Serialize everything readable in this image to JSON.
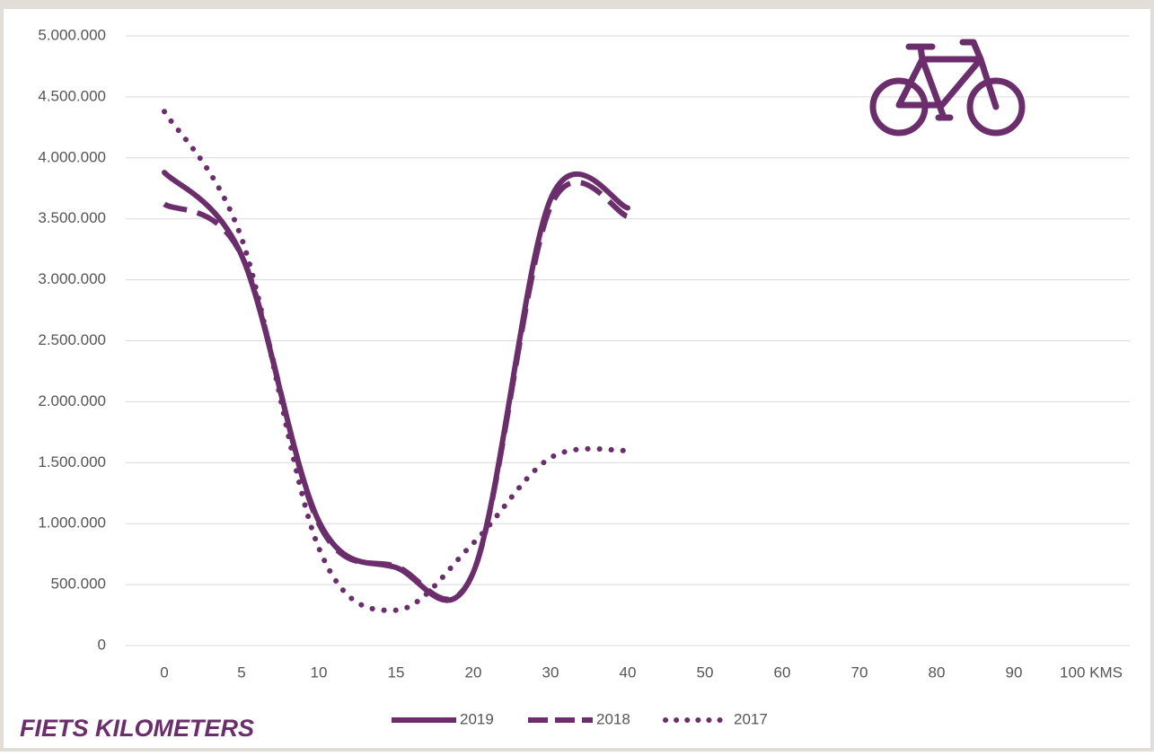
{
  "chart_data": {
    "type": "line",
    "title": "FIETS KILOMETERS",
    "categories": [
      "0",
      "5",
      "10",
      "15",
      "20",
      "30",
      "40",
      "50",
      "60",
      "70",
      "80",
      "90",
      "100 KMS"
    ],
    "series": [
      {
        "name": "2019",
        "color": "#6b2d6b",
        "style": "solid",
        "values": [
          3880000,
          3200000,
          1020000,
          640000,
          600000,
          3660000,
          3590000,
          null,
          null,
          null,
          null,
          null,
          null
        ]
      },
      {
        "name": "2018",
        "color": "#6b2d6b",
        "style": "dashed",
        "values": [
          3620000,
          3200000,
          1000000,
          650000,
          600000,
          3600000,
          3520000,
          null,
          null,
          null,
          null,
          null,
          null
        ]
      },
      {
        "name": "2017",
        "color": "#6b2d6b",
        "style": "dotted",
        "values": [
          4380000,
          3340000,
          800000,
          290000,
          840000,
          1540000,
          1600000,
          null,
          null,
          null,
          null,
          null,
          null
        ]
      }
    ],
    "ylim": [
      0,
      5000000
    ],
    "yticks": [
      0,
      {
        "value": 500000,
        "label": "500.000"
      },
      {
        "value": 1000000,
        "label": "1.000.000"
      },
      {
        "value": 1500000,
        "label": "1.500.000"
      },
      {
        "value": 2000000,
        "label": "2.000.000"
      },
      {
        "value": 2500000,
        "label": "2.500.000"
      },
      {
        "value": 3000000,
        "label": "3.000.000"
      },
      {
        "value": 3500000,
        "label": "3.500.000"
      },
      {
        "value": 4000000,
        "label": "4.000.000"
      },
      {
        "value": 4500000,
        "label": "4.500.000"
      },
      {
        "value": 5000000,
        "label": "5.000.000"
      }
    ],
    "grid": true
  }
}
